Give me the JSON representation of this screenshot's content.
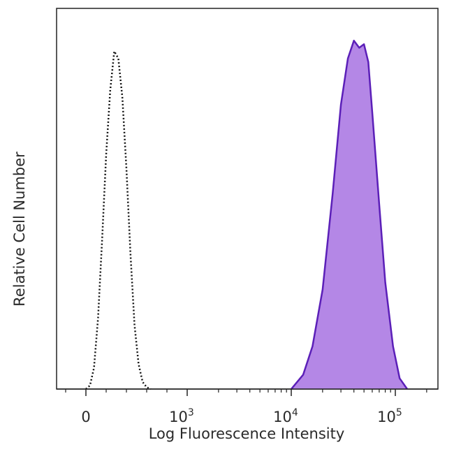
{
  "chart_data": {
    "type": "area",
    "title": "",
    "xlabel": "Log Fluorescence Intensity",
    "ylabel": "Relative Cell Number",
    "x_scale": "biexponential (linear near 0, logarithmic above)",
    "y_scale": "relative, 0 to 1 (no tick labels)",
    "ylim": [
      0,
      1
    ],
    "grid": false,
    "legend": "none",
    "x_ticks": [
      {
        "value": 0,
        "label": "0"
      },
      {
        "value": 1000,
        "label": "10",
        "sup": "3"
      },
      {
        "value": 10000,
        "label": "10",
        "sup": "4"
      },
      {
        "value": 100000,
        "label": "10",
        "sup": "5"
      }
    ],
    "series": [
      {
        "style": "dotted outline, no fill",
        "color": "#111111",
        "x": [
          0,
          40,
          80,
          120,
          160,
          200,
          240,
          280,
          320,
          360,
          400,
          440,
          480,
          520,
          560,
          600,
          640
        ],
        "y": [
          0.0,
          0.01,
          0.06,
          0.2,
          0.42,
          0.66,
          0.84,
          0.95,
          0.93,
          0.82,
          0.62,
          0.38,
          0.18,
          0.07,
          0.02,
          0.005,
          0.0
        ]
      },
      {
        "style": "filled",
        "color": "#5b1fb8",
        "fill": "#b487e6",
        "x": [
          10000,
          13000,
          16000,
          20000,
          25000,
          30000,
          35000,
          40000,
          45000,
          50000,
          55000,
          60000,
          70000,
          80000,
          95000,
          110000,
          130000
        ],
        "y": [
          0.0,
          0.04,
          0.12,
          0.28,
          0.55,
          0.8,
          0.93,
          0.98,
          0.96,
          0.97,
          0.92,
          0.78,
          0.52,
          0.3,
          0.12,
          0.03,
          0.0
        ]
      }
    ]
  }
}
